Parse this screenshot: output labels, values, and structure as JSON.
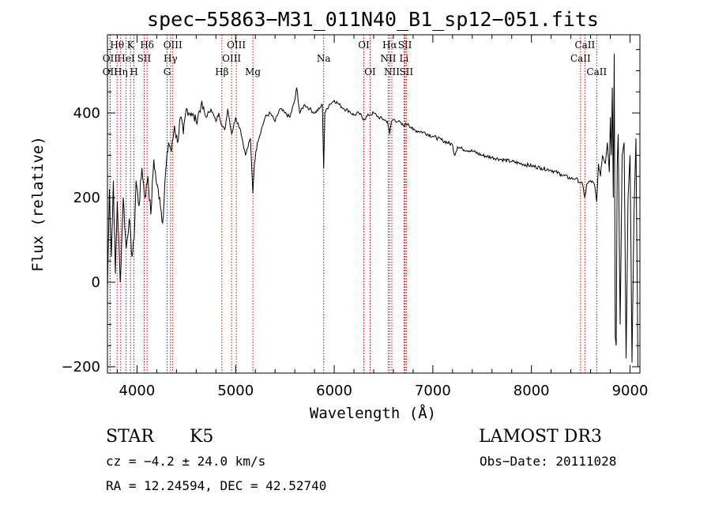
{
  "chart_data": {
    "type": "line",
    "title": "spec−55863−M31_011N40_B1_sp12−051.fits",
    "xlabel": "Wavelength (Å)",
    "ylabel": "Flux (relative)",
    "xlim": [
      3700,
      9100
    ],
    "ylim": [
      -215,
      585
    ],
    "xticks": [
      4000,
      5000,
      6000,
      7000,
      8000,
      9000
    ],
    "yticks": [
      -200,
      0,
      200,
      400
    ],
    "ytick_labels": [
      "−200",
      "0",
      "200",
      "400"
    ],
    "series": [
      {
        "name": "flux",
        "x": [
          3700,
          3720,
          3740,
          3760,
          3780,
          3800,
          3830,
          3860,
          3890,
          3920,
          3950,
          3970,
          3990,
          4020,
          4050,
          4080,
          4110,
          4140,
          4170,
          4200,
          4230,
          4260,
          4290,
          4320,
          4350,
          4380,
          4410,
          4440,
          4470,
          4500,
          4550,
          4600,
          4650,
          4700,
          4750,
          4800,
          4830,
          4861,
          4890,
          4920,
          4960,
          5000,
          5050,
          5100,
          5150,
          5175,
          5190,
          5220,
          5260,
          5300,
          5350,
          5400,
          5450,
          5500,
          5550,
          5600,
          5620,
          5650,
          5700,
          5750,
          5800,
          5850,
          5880,
          5893,
          5905,
          5950,
          6000,
          6050,
          6100,
          6150,
          6200,
          6250,
          6300,
          6350,
          6400,
          6450,
          6500,
          6540,
          6563,
          6580,
          6600,
          6650,
          6700,
          6750,
          6800,
          6900,
          7000,
          7100,
          7200,
          7220,
          7250,
          7300,
          7400,
          7500,
          7600,
          7700,
          7800,
          7900,
          8000,
          8100,
          8200,
          8300,
          8400,
          8450,
          8500,
          8520,
          8542,
          8560,
          8600,
          8640,
          8662,
          8680,
          8700,
          8720,
          8750,
          8770,
          8790,
          8800,
          8810,
          8820,
          8830,
          8840,
          8850,
          8860,
          8870,
          8880,
          8900,
          8920,
          8940,
          8960,
          8980,
          9000,
          9020,
          9040,
          9060,
          9080
        ],
        "y": [
          -20,
          220,
          60,
          240,
          20,
          190,
          0,
          200,
          80,
          150,
          60,
          100,
          240,
          180,
          270,
          200,
          250,
          160,
          290,
          230,
          200,
          140,
          260,
          330,
          310,
          370,
          330,
          390,
          350,
          410,
          400,
          380,
          420,
          390,
          410,
          380,
          400,
          370,
          360,
          410,
          350,
          390,
          360,
          300,
          340,
          210,
          280,
          330,
          360,
          390,
          400,
          380,
          410,
          400,
          390,
          430,
          460,
          400,
          420,
          410,
          400,
          410,
          420,
          270,
          400,
          420,
          430,
          420,
          410,
          405,
          395,
          400,
          385,
          395,
          400,
          390,
          385,
          380,
          350,
          380,
          385,
          380,
          370,
          375,
          360,
          355,
          345,
          335,
          325,
          300,
          320,
          315,
          310,
          300,
          295,
          290,
          285,
          280,
          275,
          270,
          265,
          255,
          245,
          245,
          235,
          230,
          200,
          230,
          240,
          230,
          190,
          280,
          250,
          300,
          280,
          330,
          260,
          390,
          300,
          460,
          200,
          540,
          -130,
          -150,
          280,
          350,
          -100,
          300,
          330,
          -180,
          200,
          300,
          -190,
          160,
          340,
          -200
        ]
      }
    ],
    "spectral_lines": [
      {
        "name": "Hθ",
        "wavelength": 3798,
        "row": 1
      },
      {
        "name": "OII",
        "wavelength": 3727,
        "row": 2
      },
      {
        "name": "OII",
        "wavelength": 3727,
        "row": 3
      },
      {
        "name": "HeI",
        "wavelength": 3889,
        "row": 2
      },
      {
        "name": "Hη",
        "wavelength": 3835,
        "row": 3
      },
      {
        "name": "K",
        "wavelength": 3934,
        "row": 1
      },
      {
        "name": "H",
        "wavelength": 3969,
        "row": 3
      },
      {
        "name": "SII",
        "wavelength": 4072,
        "row": 2
      },
      {
        "name": "Hδ",
        "wavelength": 4102,
        "row": 1
      },
      {
        "name": "OIII",
        "wavelength": 4363,
        "row": 1
      },
      {
        "name": "Hγ",
        "wavelength": 4340,
        "row": 2
      },
      {
        "name": "G",
        "wavelength": 4305,
        "row": 3
      },
      {
        "name": "Hβ",
        "wavelength": 4861,
        "row": 3
      },
      {
        "name": "OIII",
        "wavelength": 5007,
        "row": 1
      },
      {
        "name": "OIII",
        "wavelength": 4959,
        "row": 2
      },
      {
        "name": "Mg",
        "wavelength": 5175,
        "row": 3
      },
      {
        "name": "Na",
        "wavelength": 5893,
        "row": 2
      },
      {
        "name": "OI",
        "wavelength": 6300,
        "row": 1
      },
      {
        "name": "OI",
        "wavelength": 6364,
        "row": 3
      },
      {
        "name": "Hα",
        "wavelength": 6563,
        "row": 1
      },
      {
        "name": "SII",
        "wavelength": 6717,
        "row": 1
      },
      {
        "name": "NII",
        "wavelength": 6548,
        "row": 2
      },
      {
        "name": "Li",
        "wavelength": 6708,
        "row": 2
      },
      {
        "name": "NII",
        "wavelength": 6584,
        "row": 3
      },
      {
        "name": "SII",
        "wavelength": 6731,
        "row": 3
      },
      {
        "name": "CaII",
        "wavelength": 8542,
        "row": 1
      },
      {
        "name": "CaII",
        "wavelength": 8498,
        "row": 2
      },
      {
        "name": "CaII",
        "wavelength": 8662,
        "row": 3
      }
    ]
  },
  "info": {
    "object_class": "STAR",
    "subclass": "K5",
    "survey": "LAMOST DR3",
    "redshift": "cz = −4.2 ± 24.0 km/s",
    "obs_date": "Obs−Date: 20111028",
    "coords": "RA =  12.24594, DEC =  42.52740"
  },
  "colors": {
    "line_marker": "#cc0000",
    "spectrum": "#000000"
  }
}
